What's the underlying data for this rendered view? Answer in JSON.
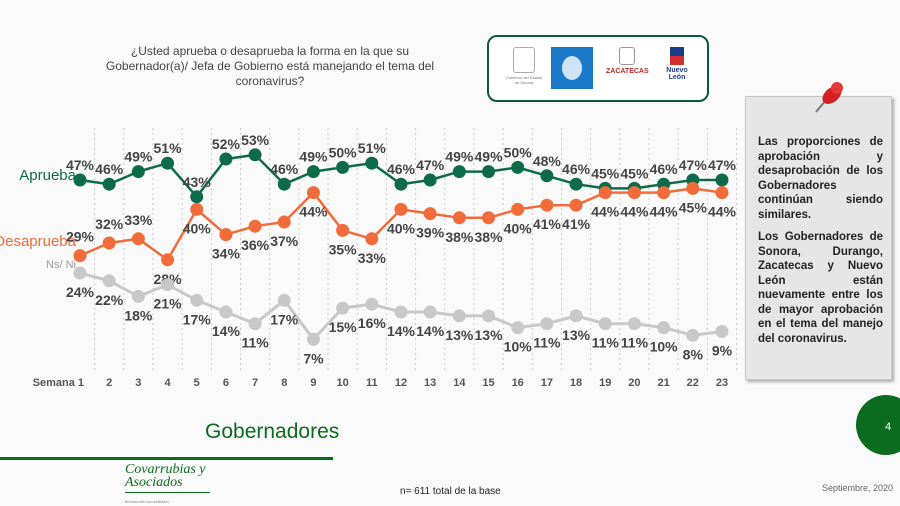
{
  "question": "¿Usted aprueba o desaprueba la forma en la que su Gobernador(a)/ Jefa de Gobierno está manejando el tema del coronavirus?",
  "logos": {
    "sonora": "Gobierno del Estado de Sonora",
    "zacatecas": "ZACATECAS",
    "nuevo_leon": "Nuevo León"
  },
  "sidebar": {
    "paragraph1": "Las proporciones de aprobación y desaprobación de los Gobernadores continúan siendo similares.",
    "paragraph2": "Los Gobernadores de Sonora, Durango, Zacatecas y Nuevo León están nuevamente entre los de mayor aprobación en el tema del manejo del coronavirus."
  },
  "footer": {
    "title": "Gobernadores",
    "brand": "Covarrubias y Asociados",
    "brand_tag": "Información con resultados",
    "note": "n= 611 total de la base",
    "date": "Septiembre, 2020",
    "page_number": "4"
  },
  "chart_data": {
    "type": "line",
    "x_prefix": "Semana",
    "categories": [
      "1",
      "2",
      "3",
      "4",
      "5",
      "6",
      "7",
      "8",
      "9",
      "10",
      "11",
      "12",
      "13",
      "14",
      "15",
      "16",
      "17",
      "18",
      "19",
      "20",
      "21",
      "22",
      "23"
    ],
    "series": [
      {
        "name": "Aprueba",
        "color": "#0d6b4a",
        "values": [
          47,
          46,
          49,
          51,
          43,
          52,
          53,
          46,
          49,
          50,
          51,
          46,
          47,
          49,
          49,
          50,
          48,
          46,
          45,
          45,
          46,
          47,
          47
        ]
      },
      {
        "name": "Desaprueba",
        "color": "#f26b3a",
        "values": [
          29,
          32,
          33,
          28,
          40,
          34,
          36,
          37,
          44,
          35,
          33,
          40,
          39,
          38,
          38,
          40,
          41,
          41,
          44,
          44,
          44,
          45,
          44
        ]
      },
      {
        "name": "Ns/ Ni",
        "color": "#c8c8c8",
        "values": [
          24,
          22,
          18,
          21,
          17,
          14,
          11,
          17,
          7,
          15,
          16,
          14,
          14,
          13,
          13,
          10,
          11,
          13,
          11,
          11,
          10,
          8,
          9
        ]
      }
    ],
    "value_suffix": "%",
    "grid": "vertical dashed"
  }
}
